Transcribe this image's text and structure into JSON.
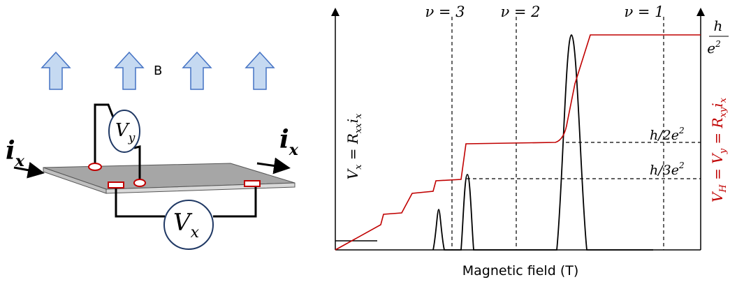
{
  "setup": {
    "field_label": "B",
    "current_left": {
      "base": "i",
      "sub": "x"
    },
    "current_right": {
      "base": "i",
      "sub": "x"
    },
    "hall_meter": {
      "base": "V",
      "sub": "y"
    },
    "long_meter": {
      "base": "V",
      "sub": "x"
    }
  },
  "plot": {
    "x_axis_label": "Magnetic field (T)",
    "filling_labels": [
      "ν = 3",
      "ν = 2",
      "ν = 1"
    ],
    "plateau_top": {
      "num": "h",
      "den": "e",
      "exp": "2"
    },
    "plateau_half": {
      "text": "h/2e",
      "exp": "2"
    },
    "plateau_third": {
      "text": "h/3e",
      "exp": "2"
    },
    "left_axis_label": {
      "v": "V",
      "vsub": "x",
      "eq": " = ",
      "r": "R",
      "rsub": "xx",
      "i": "i",
      "isub": "x"
    },
    "right_axis_label": {
      "v": "V",
      "vsub": "H",
      "eq1": " = ",
      "v2": "V",
      "v2sub": "y",
      "eq2": " = ",
      "r": "R",
      "rsub": "xy",
      "i": "i",
      "isub": "x"
    }
  }
}
